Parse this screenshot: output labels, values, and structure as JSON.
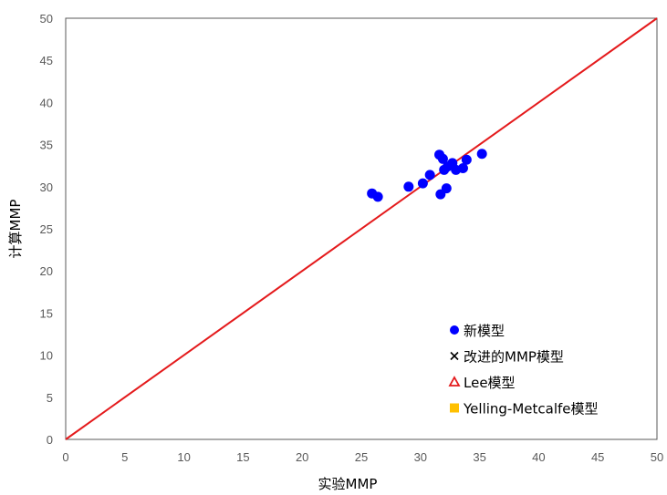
{
  "chart_data": {
    "type": "scatter",
    "title": "",
    "xlabel": "实验MMP",
    "ylabel": "计算MMP",
    "xlim": [
      0,
      50
    ],
    "ylim": [
      0,
      50
    ],
    "xticks": [
      "0",
      "5",
      "10",
      "15",
      "20",
      "25",
      "30",
      "35",
      "40",
      "45",
      "50"
    ],
    "yticks": [
      "0",
      "5",
      "10",
      "15",
      "20",
      "25",
      "30",
      "35",
      "40",
      "45",
      "50"
    ],
    "grid": false,
    "legend_position": "bottom-right",
    "reference_line": {
      "from": [
        0,
        0
      ],
      "to": [
        50,
        50
      ],
      "color": "#e41a1c"
    },
    "series": [
      {
        "name": "新模型",
        "marker": "circle",
        "color": "#0000ff",
        "points": [
          {
            "x": 25.9,
            "y": 29.2
          },
          {
            "x": 26.4,
            "y": 28.8
          },
          {
            "x": 29.0,
            "y": 30.0
          },
          {
            "x": 30.2,
            "y": 30.4
          },
          {
            "x": 30.8,
            "y": 31.4
          },
          {
            "x": 31.6,
            "y": 33.8
          },
          {
            "x": 31.9,
            "y": 33.3
          },
          {
            "x": 32.0,
            "y": 32.0
          },
          {
            "x": 32.3,
            "y": 32.4
          },
          {
            "x": 32.7,
            "y": 32.8
          },
          {
            "x": 33.0,
            "y": 32.0
          },
          {
            "x": 33.6,
            "y": 32.2
          },
          {
            "x": 33.9,
            "y": 33.2
          },
          {
            "x": 31.7,
            "y": 29.1
          },
          {
            "x": 32.2,
            "y": 29.8
          },
          {
            "x": 35.2,
            "y": 33.9
          }
        ]
      },
      {
        "name": "改进的MMP模型",
        "marker": "x",
        "color": "#000000",
        "points": []
      },
      {
        "name": "Lee模型",
        "marker": "triangle-open",
        "color": "#e41a1c",
        "points": []
      },
      {
        "name": "Yelling-Metcalfe模型",
        "marker": "square",
        "color": "#ffc000",
        "points": []
      }
    ]
  }
}
